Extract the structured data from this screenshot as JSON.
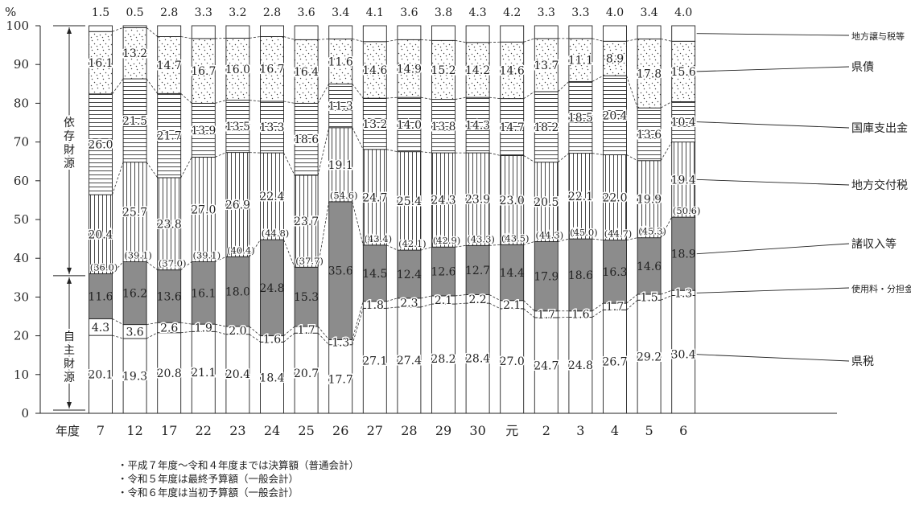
{
  "chart_data": {
    "type": "bar",
    "stacked": true,
    "ylabel": "%",
    "xlabel": "年度",
    "ylim": [
      0,
      100
    ],
    "yticks": [
      0,
      10,
      20,
      30,
      40,
      50,
      60,
      70,
      80,
      90,
      100
    ],
    "categories": [
      "7",
      "12",
      "17",
      "22",
      "23",
      "24",
      "25",
      "26",
      "27",
      "28",
      "29",
      "30",
      "元",
      "2",
      "3",
      "4",
      "5",
      "6"
    ],
    "series": [
      {
        "name": "県税",
        "fill": "#ffffff",
        "pattern": "none",
        "values": [
          20.1,
          19.3,
          20.8,
          21.1,
          20.4,
          18.4,
          20.7,
          17.7,
          27.1,
          27.4,
          28.2,
          28.4,
          27.0,
          24.7,
          24.8,
          26.7,
          29.2,
          30.4
        ]
      },
      {
        "name": "使用料・分担金",
        "fill": "#ffffff",
        "pattern": "none",
        "values": [
          4.3,
          3.6,
          2.6,
          1.9,
          2.0,
          1.6,
          1.7,
          1.3,
          1.8,
          2.3,
          2.1,
          2.2,
          2.1,
          1.7,
          1.6,
          1.7,
          1.5,
          1.3
        ]
      },
      {
        "name": "諸収入等",
        "fill": "#8c8c8c",
        "pattern": "gray",
        "values": [
          11.6,
          16.2,
          13.6,
          16.1,
          18.0,
          24.8,
          15.3,
          35.6,
          14.5,
          12.4,
          12.6,
          12.7,
          14.4,
          17.9,
          18.6,
          16.3,
          14.6,
          18.9
        ]
      },
      {
        "name": "地方交付税",
        "fill": "#ffffff",
        "pattern": "vertical",
        "values": [
          20.4,
          25.7,
          23.8,
          27.0,
          26.9,
          22.4,
          23.7,
          19.1,
          24.7,
          25.4,
          24.3,
          23.9,
          23.0,
          20.5,
          22.1,
          22.0,
          19.9,
          19.4
        ]
      },
      {
        "name": "国庫支出金",
        "fill": "#ffffff",
        "pattern": "horizontal",
        "values": [
          26.0,
          21.5,
          21.7,
          13.9,
          13.5,
          13.3,
          18.6,
          11.3,
          13.2,
          14.0,
          13.8,
          14.3,
          14.7,
          18.2,
          18.5,
          20.4,
          13.6,
          10.4
        ]
      },
      {
        "name": "県債",
        "fill": "#ffffff",
        "pattern": "dots",
        "values": [
          16.1,
          13.2,
          14.7,
          16.7,
          16.0,
          16.7,
          16.4,
          11.6,
          14.6,
          14.9,
          15.2,
          14.2,
          14.6,
          13.7,
          11.1,
          8.9,
          17.8,
          15.6
        ]
      },
      {
        "name": "地方譲与税等",
        "fill": "#ffffff",
        "pattern": "none",
        "values": [
          1.5,
          0.5,
          2.8,
          3.3,
          3.2,
          2.8,
          3.6,
          3.4,
          4.1,
          3.6,
          3.8,
          4.3,
          4.2,
          3.3,
          3.3,
          4.0,
          3.4,
          4.0
        ]
      }
    ],
    "labels": {
      "県税": [
        "20.1",
        "19.3",
        "20.8",
        "21.1",
        "20.4",
        "18.4",
        "20.7",
        "17.7",
        "27.1",
        "27.4",
        "28.2",
        "28.4",
        "27.0",
        "24.7",
        "24.8",
        "26.7",
        "29.2",
        "30.4"
      ],
      "使用料・分担金": [
        "4.3",
        "3.6",
        "2.6",
        "1.9",
        "2.0",
        "1.6",
        "1.7",
        "1.3",
        "1.8",
        "2.3",
        "2.1",
        "2.2",
        "2.1",
        "1.7",
        "1.6",
        "1.7",
        "1.5",
        "1.3"
      ],
      "諸収入等": [
        "11.6",
        "16.2",
        "13.6",
        "16.1",
        "18.0",
        "24.8",
        "15.3",
        "35.6",
        "14.5",
        "12.4",
        "12.6",
        "12.7",
        "14.4",
        "17.9",
        "18.6",
        "16.3",
        "14.6",
        "18.9"
      ],
      "地方交付税": [
        "20.4",
        "25.7",
        "23.8",
        "27.0",
        "26.9",
        "22.4",
        "23.7",
        "19.1",
        "24.7",
        "25.4",
        "24.3",
        "23.9",
        "23.0",
        "20.5",
        "22.1",
        "22.0",
        "19.9",
        "19.4"
      ],
      "国庫支出金": [
        "26.0",
        "21.5",
        "21.7",
        "13.9",
        "13.5",
        "13.3",
        "18.6",
        "11.3",
        "13.2",
        "14.0",
        "13.8",
        "14.3",
        "14.7",
        "18.2",
        "18.5",
        "20.4",
        "13.6",
        "10.4"
      ],
      "県債": [
        "16.1",
        "13.2",
        "14.7",
        "16.7",
        "16.0",
        "16.7",
        "16.4",
        "11.6",
        "14.6",
        "14.9",
        "15.2",
        "14.2",
        "14.6",
        "13.7",
        "11.1",
        "8.9",
        "17.8",
        "15.6"
      ],
      "地方譲与税等": [
        "1.5",
        "0.5",
        "2.8",
        "3.3",
        "3.2",
        "2.8",
        "3.6",
        "3.4",
        "4.1",
        "3.6",
        "3.8",
        "4.3",
        "4.2",
        "3.3",
        "3.3",
        "4.0",
        "3.4",
        "4.0"
      ]
    },
    "own_revenue_ratio_labels": [
      "(36.0)",
      "(39.1)",
      "(37.0)",
      "(39.1)",
      "(40.4)",
      "(44.8)",
      "(37.7)",
      "(54.6)",
      "(43.4)",
      "(42.1)",
      "(42.9)",
      "(43.3)",
      "(43.5)",
      "(44.3)",
      "(45.0)",
      "(44.7)",
      "(45.3)",
      "(50.6)"
    ],
    "legend_right": [
      "地方譲与税等",
      "県債",
      "国庫支出金",
      "地方交付税",
      "諸収入等",
      "使用料・分担金",
      "県税"
    ],
    "brackets": {
      "dependent": "依存財源",
      "own": "自主財源",
      "boundary_value": 35.5
    }
  },
  "notes": [
    "・平成７年度～令和４年度までは決算額（普通会計）",
    "・令和５年度は最終予算額（一般会計）",
    "・令和６年度は当初予算額（一般会計）"
  ]
}
